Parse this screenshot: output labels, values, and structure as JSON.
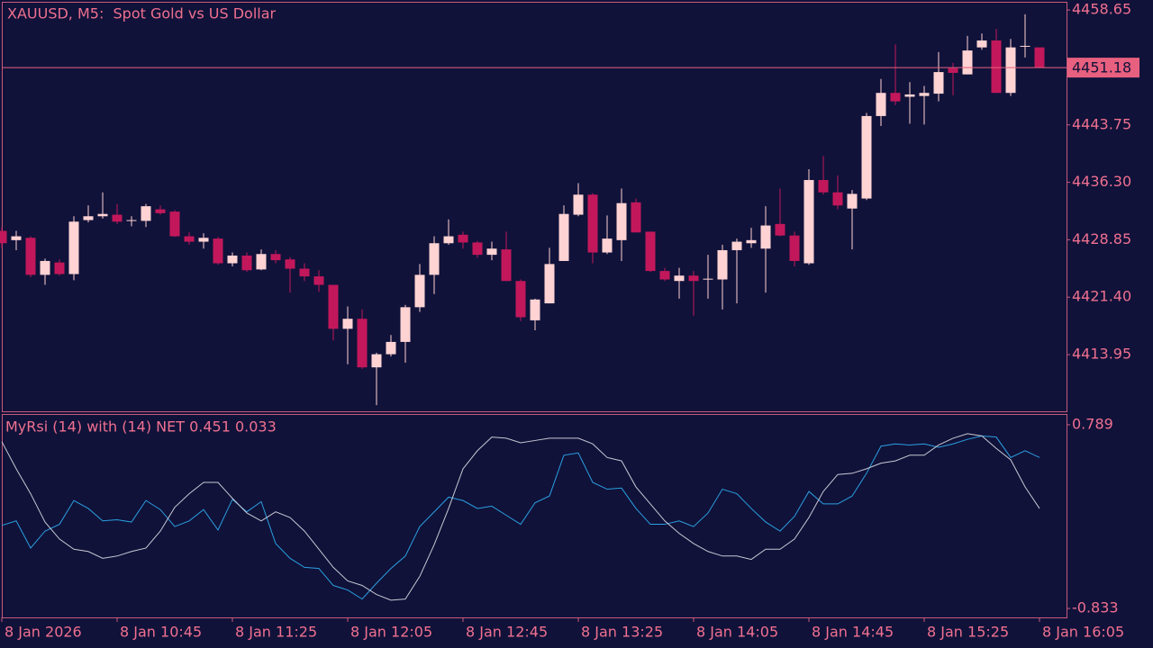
{
  "chart_data": [
    {
      "type": "candlestick",
      "title": "XAUUSD, M5:  Spot Gold vs US Dollar",
      "categories": [
        "8 Jan 2026",
        null,
        null,
        null,
        null,
        null,
        null,
        null,
        "8 Jan 10:45",
        null,
        null,
        null,
        null,
        null,
        null,
        null,
        "8 Jan 11:25",
        null,
        null,
        null,
        null,
        null,
        null,
        null,
        "8 Jan 12:05",
        null,
        null,
        null,
        null,
        null,
        null,
        null,
        "8 Jan 12:45",
        null,
        null,
        null,
        null,
        null,
        null,
        null,
        "8 Jan 13:25",
        null,
        null,
        null,
        null,
        null,
        null,
        null,
        "8 Jan 14:05",
        null,
        null,
        null,
        null,
        null,
        null,
        null,
        "8 Jan 14:45",
        null,
        null,
        null,
        null,
        null,
        null,
        null,
        "8 Jan 15:25",
        null,
        null,
        null,
        null,
        null,
        null,
        null,
        "8 Jan 16:05"
      ],
      "open": [
        4430.0,
        4428.8,
        4429.1,
        4424.3,
        4425.9,
        4424.4,
        4431.4,
        4431.9,
        4432.1,
        4431.3,
        4431.3,
        4432.8,
        4432.5,
        4429.3,
        4428.6,
        4429.0,
        4425.8,
        4426.8,
        4425.0,
        4427.0,
        4426.3,
        4425.1,
        4424.1,
        4423.0,
        4417.3,
        4418.6,
        4412.3,
        4414.0,
        4415.6,
        4420.1,
        4424.3,
        4428.4,
        4429.5,
        4428.5,
        4426.9,
        4427.6,
        4423.5,
        4418.4,
        4420.6,
        4426.1,
        4432.1,
        4434.7,
        4427.2,
        4428.8,
        4433.7,
        4429.9,
        4424.8,
        4423.5,
        4424.2,
        4423.7,
        4423.7,
        4427.5,
        4428.4,
        4427.7,
        4430.9,
        4429.4,
        4425.8,
        4436.6,
        4435.0,
        4432.9,
        4434.2,
        4444.9,
        4447.9,
        4447.4,
        4447.5,
        4447.8,
        4451.1,
        4450.3,
        4453.8,
        4454.7,
        4447.9,
        4453.9,
        4453.8
      ],
      "high": [
        4430.5,
        4430.0,
        4429.3,
        4426.4,
        4426.3,
        4431.9,
        4433.3,
        4435.0,
        4433.5,
        4431.9,
        4433.5,
        4433.3,
        4432.7,
        4429.8,
        4429.7,
        4429.2,
        4427.2,
        4427.2,
        4427.6,
        4427.5,
        4426.6,
        4425.8,
        4424.9,
        4423.0,
        4420.2,
        4419.8,
        4414.2,
        4416.5,
        4420.4,
        4425.7,
        4429.3,
        4431.5,
        4429.9,
        4428.7,
        4428.6,
        4429.9,
        4423.7,
        4421.2,
        4427.8,
        4433.3,
        4436.2,
        4434.9,
        4432.0,
        4435.5,
        4434.2,
        4429.9,
        4425.2,
        4425.2,
        4424.8,
        4426.9,
        4428.2,
        4429.0,
        4430.4,
        4433.2,
        4435.5,
        4429.9,
        4438.0,
        4439.7,
        4437.2,
        4435.3,
        4445.3,
        4449.7,
        4454.2,
        4449.3,
        4448.8,
        4453.2,
        4451.8,
        4455.3,
        4455.6,
        4456.2,
        4454.9,
        4458.1,
        4453.8
      ],
      "low": [
        4427.8,
        4427.5,
        4424.0,
        4423.0,
        4424.2,
        4423.6,
        4431.1,
        4431.6,
        4430.9,
        4430.6,
        4430.5,
        4432.1,
        4429.2,
        4428.2,
        4427.7,
        4425.6,
        4425.4,
        4424.7,
        4424.9,
        4425.8,
        4422.0,
        4423.5,
        4422.1,
        4415.8,
        4412.7,
        4412.1,
        4407.4,
        4413.7,
        4412.9,
        4419.5,
        4421.8,
        4428.2,
        4427.7,
        4426.5,
        4426.2,
        4423.5,
        4418.3,
        4417.1,
        4420.6,
        4426.1,
        4431.9,
        4425.8,
        4427.0,
        4426.1,
        4429.8,
        4424.7,
        4423.5,
        4421.2,
        4419.0,
        4421.2,
        4419.8,
        4420.6,
        4427.8,
        4422.0,
        4429.3,
        4425.4,
        4425.6,
        4434.7,
        4432.8,
        4427.6,
        4434.0,
        4443.6,
        4446.3,
        4443.9,
        4443.8,
        4446.8,
        4447.6,
        4450.3,
        4453.5,
        4447.9,
        4447.5,
        4452.5,
        4451.18
      ],
      "close": [
        4428.4,
        4429.3,
        4424.3,
        4426.1,
        4424.4,
        4431.2,
        4431.9,
        4432.2,
        4431.2,
        4431.4,
        4433.2,
        4432.3,
        4429.3,
        4428.6,
        4429.1,
        4425.8,
        4426.8,
        4424.9,
        4427.0,
        4426.2,
        4425.1,
        4424.1,
        4423.0,
        4417.3,
        4418.6,
        4412.3,
        4414.0,
        4415.6,
        4420.1,
        4424.3,
        4428.4,
        4429.3,
        4428.5,
        4426.9,
        4427.7,
        4423.5,
        4418.8,
        4421.1,
        4425.7,
        4432.2,
        4434.7,
        4427.2,
        4429.0,
        4433.6,
        4429.8,
        4424.8,
        4423.7,
        4424.2,
        4423.5,
        4423.8,
        4427.5,
        4428.6,
        4428.8,
        4430.7,
        4429.4,
        4426.1,
        4436.6,
        4435.0,
        4433.3,
        4434.8,
        4444.9,
        4447.9,
        4446.8,
        4447.7,
        4447.9,
        4450.6,
        4450.5,
        4453.4,
        4454.7,
        4447.9,
        4453.8,
        4454.0,
        4451.18
      ],
      "up_color": "#ffd3d3",
      "down_color": "#c2185b",
      "last_price": 4451.18,
      "last_price_color": "#e8607f",
      "ylim": [
        4406.6,
        4459.6
      ],
      "yticks": [
        4458.65,
        4443.75,
        {
          "value": 4436.3,
          "label": "4436.30"
        },
        4428.85,
        {
          "value": 4421.4,
          "label": "4421.40"
        },
        4413.95
      ]
    },
    {
      "type": "line",
      "title": "MyRsi (14) with (14) NET 0.451 0.033",
      "series": [
        {
          "color": "#2b9fe0",
          "values": [
            -0.1,
            -0.06,
            -0.3,
            -0.15,
            -0.09,
            0.12,
            0.05,
            -0.06,
            -0.05,
            -0.07,
            0.12,
            0.04,
            -0.11,
            -0.06,
            0.04,
            -0.14,
            0.13,
            0.02,
            0.11,
            -0.26,
            -0.39,
            -0.47,
            -0.48,
            -0.63,
            -0.67,
            -0.75,
            -0.61,
            -0.48,
            -0.37,
            -0.11,
            0.02,
            0.15,
            0.12,
            0.05,
            0.07,
            -0.01,
            -0.09,
            0.1,
            0.16,
            0.52,
            0.54,
            0.28,
            0.22,
            0.23,
            0.05,
            -0.09,
            -0.09,
            -0.06,
            -0.11,
            0.01,
            0.22,
            0.18,
            0.05,
            -0.07,
            -0.15,
            -0.02,
            0.2,
            0.09,
            0.09,
            0.16,
            0.36,
            0.6,
            0.62,
            0.61,
            0.62,
            0.59,
            0.62,
            0.66,
            0.69,
            0.68,
            0.5,
            0.56,
            0.5
          ]
        },
        {
          "color": "#c8c8d2",
          "values": [
            0.64,
            0.4,
            0.18,
            -0.07,
            -0.22,
            -0.31,
            -0.33,
            -0.39,
            -0.37,
            -0.33,
            -0.3,
            -0.15,
            0.06,
            0.18,
            0.28,
            0.28,
            0.14,
            0.01,
            -0.06,
            0.02,
            -0.03,
            -0.15,
            -0.31,
            -0.47,
            -0.59,
            -0.63,
            -0.71,
            -0.76,
            -0.75,
            -0.55,
            -0.27,
            0.05,
            0.4,
            0.56,
            0.68,
            0.67,
            0.63,
            0.65,
            0.67,
            0.67,
            0.67,
            0.62,
            0.5,
            0.47,
            0.24,
            0.09,
            -0.06,
            -0.17,
            -0.26,
            -0.33,
            -0.37,
            -0.37,
            -0.4,
            -0.31,
            -0.31,
            -0.22,
            -0.03,
            0.2,
            0.35,
            0.36,
            0.4,
            0.45,
            0.47,
            0.52,
            0.52,
            0.61,
            0.67,
            0.71,
            0.69,
            0.58,
            0.48,
            0.24,
            0.05
          ]
        }
      ],
      "ylim": [
        -0.912,
        0.876
      ],
      "yticks": [
        0.789,
        -0.833
      ]
    }
  ]
}
